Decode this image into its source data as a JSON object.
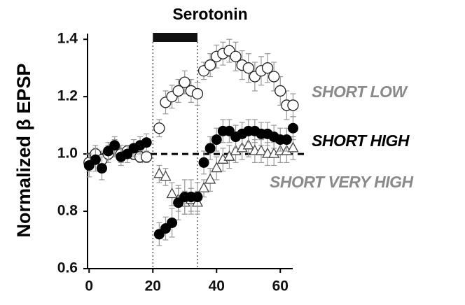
{
  "chart_data": {
    "type": "scatter",
    "ylabel": "Normalized β EPSP",
    "x": [
      0,
      2,
      4,
      6,
      8,
      10,
      12,
      14,
      16,
      18,
      22,
      24,
      26,
      28,
      30,
      32,
      34,
      36,
      38,
      40,
      42,
      44,
      46,
      48,
      50,
      52,
      54,
      56,
      58,
      60,
      62,
      64
    ],
    "series": [
      {
        "name": "SHORT LOW",
        "color": "#8a8a8a",
        "marker": "open-circle",
        "values": [
          0.97,
          1.0,
          0.98,
          1.0,
          1.02,
          1.0,
          1.01,
          1.0,
          0.99,
          0.99,
          1.09,
          1.18,
          1.2,
          1.22,
          1.25,
          1.22,
          1.21,
          1.29,
          1.31,
          1.34,
          1.35,
          1.36,
          1.34,
          1.31,
          1.3,
          1.27,
          1.29,
          1.3,
          1.27,
          1.22,
          1.17,
          1.17
        ],
        "errors": [
          0.03,
          0.03,
          0.03,
          0.03,
          0.03,
          0.03,
          0.02,
          0.02,
          0.02,
          0.02,
          0.03,
          0.04,
          0.04,
          0.04,
          0.04,
          0.04,
          0.04,
          0.03,
          0.04,
          0.04,
          0.04,
          0.04,
          0.05,
          0.05,
          0.05,
          0.05,
          0.05,
          0.05,
          0.05,
          0.05,
          0.05,
          0.04
        ]
      },
      {
        "name": "SHORT HIGH",
        "color": "#000000",
        "marker": "filled-circle",
        "values": [
          0.96,
          0.98,
          0.95,
          1.01,
          1.03,
          0.99,
          1.0,
          1.02,
          1.03,
          1.04,
          0.72,
          0.74,
          0.76,
          0.83,
          0.85,
          0.85,
          0.85,
          0.97,
          1.02,
          1.05,
          1.08,
          1.08,
          1.06,
          1.07,
          1.08,
          1.08,
          1.07,
          1.07,
          1.06,
          1.05,
          1.05,
          1.09
        ],
        "errors": [
          0.04,
          0.04,
          0.04,
          0.03,
          0.03,
          0.03,
          0.03,
          0.03,
          0.03,
          0.03,
          0.04,
          0.04,
          0.05,
          0.06,
          0.06,
          0.06,
          0.05,
          0.04,
          0.04,
          0.04,
          0.04,
          0.04,
          0.04,
          0.04,
          0.04,
          0.04,
          0.04,
          0.04,
          0.04,
          0.04,
          0.04,
          0.04
        ]
      },
      {
        "name": "SHORT VERY HIGH",
        "color": "#8a8a8a",
        "marker": "triangle",
        "values": [
          null,
          null,
          null,
          null,
          null,
          null,
          null,
          null,
          null,
          null,
          0.93,
          0.92,
          0.86,
          0.84,
          0.83,
          0.84,
          0.83,
          0.88,
          0.91,
          0.95,
          0.98,
          0.99,
          1.01,
          1.02,
          1.03,
          1.01,
          1.01,
          1.0,
          1.0,
          1.01,
          1.01,
          1.02
        ],
        "errors": [
          null,
          null,
          null,
          null,
          null,
          null,
          null,
          null,
          null,
          null,
          0.03,
          0.03,
          0.04,
          0.04,
          0.04,
          0.04,
          0.04,
          0.03,
          0.04,
          0.04,
          0.04,
          0.04,
          0.04,
          0.04,
          0.04,
          0.04,
          0.04,
          0.04,
          0.04,
          0.04,
          0.04,
          0.04
        ]
      }
    ],
    "xlim": [
      -0.5,
      65
    ],
    "ylim": [
      0.6,
      1.42
    ],
    "xticks": [
      0,
      20,
      40,
      60
    ],
    "yticks": [
      0.6,
      0.8,
      {
        "value": 1,
        "label": "1.0"
      },
      1.2,
      1.4
    ],
    "drug": {
      "text": "Serotonin",
      "start": 20,
      "end": 34
    },
    "reference_line": 1
  }
}
